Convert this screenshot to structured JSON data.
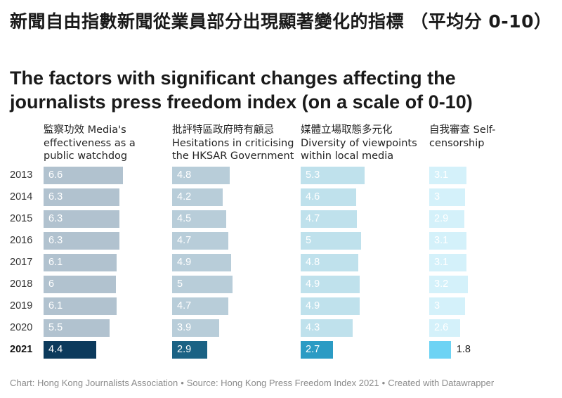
{
  "title_zh": "新聞自由指數新聞從業員部分出現顯著變化的指標 （平均分 0-10）",
  "title_en": "The factors with significant changes affecting the journalists press freedom index (on a scale of 0-10)",
  "chart_data": {
    "type": "bar",
    "orientation": "horizontal",
    "categories": [
      "2013",
      "2014",
      "2015",
      "2016",
      "2017",
      "2018",
      "2019",
      "2020",
      "2021"
    ],
    "highlight_category": "2021",
    "panels": [
      {
        "name": "監察功效 Media's effectiveness as a public watchdog",
        "values": [
          6.6,
          6.3,
          6.3,
          6.3,
          6.1,
          6.0,
          6.1,
          5.5,
          4.4
        ],
        "labels": [
          "6.6",
          "6.3",
          "6.3",
          "6.3",
          "6.1",
          "6",
          "6.1",
          "5.5",
          "4.4"
        ],
        "color": "#b1c2cf",
        "highlight_color": "#0c3a5c"
      },
      {
        "name": "批評特區政府時有顧忌 Hesitations in criticising the HKSAR Government",
        "values": [
          4.8,
          4.2,
          4.5,
          4.7,
          4.9,
          5.0,
          4.7,
          3.9,
          2.9
        ],
        "labels": [
          "4.8",
          "4.2",
          "4.5",
          "4.7",
          "4.9",
          "5",
          "4.7",
          "3.9",
          "2.9"
        ],
        "color": "#b8cdd9",
        "highlight_color": "#1b6284"
      },
      {
        "name": "媒體立場取態多元化 Diversity of viewpoints within local media",
        "values": [
          5.3,
          4.6,
          4.7,
          5.0,
          4.8,
          4.9,
          4.9,
          4.3,
          2.7
        ],
        "labels": [
          "5.3",
          "4.6",
          "4.7",
          "5",
          "4.8",
          "4.9",
          "4.9",
          "4.3",
          "2.7"
        ],
        "color": "#bfe1ec",
        "highlight_color": "#2b9bc4"
      },
      {
        "name": "自我審查 Self-censorship",
        "values": [
          3.1,
          3.0,
          2.9,
          3.1,
          3.1,
          3.2,
          3.0,
          2.6,
          1.8
        ],
        "labels": [
          "3.1",
          "3",
          "2.9",
          "3.1",
          "3.1",
          "3.2",
          "3",
          "2.6",
          "1.8"
        ],
        "color": "#d4f1fa",
        "highlight_color": "#6dd3f4"
      }
    ],
    "xlim": [
      0,
      10
    ]
  },
  "footer": {
    "chart": "Chart: Hong Kong Journalists Association",
    "source": "Source: Hong Kong Press Freedom Index 2021",
    "credit": "Created with Datawrapper",
    "separator": "•"
  }
}
